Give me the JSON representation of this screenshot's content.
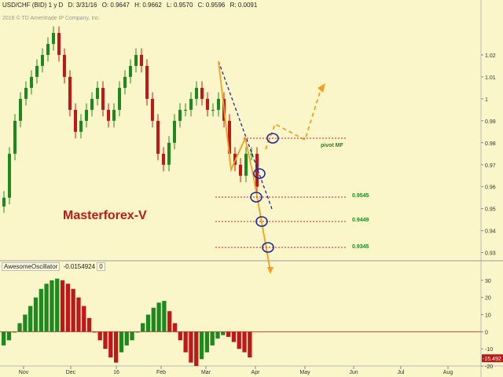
{
  "header": {
    "symbol": "USD/CHF (BID) 1 y D",
    "date": "D: 3/31/16",
    "open": "O: 0.9647",
    "high": "H: 0.9662",
    "low": "L: 0.9570",
    "close": "C: 0.9596",
    "range": "R: 0.0091",
    "copyright": "2016 © TD Ameritrade IP Company, Inc."
  },
  "brand": "Masterforex-V",
  "pivot_label": "pivot MF",
  "levels": [
    "0.9545",
    "0.9449",
    "0.9345"
  ],
  "oscillator": {
    "name": "AwesomeOscillator",
    "value": "-0.0154924",
    "extra": "0",
    "current_badge": "-15.492"
  },
  "colors": {
    "background": "#fbf6c9",
    "up_bar": "#1e8a1e",
    "down_bar": "#c01818",
    "projection": "#f4a020",
    "trendline": "#1a2a9a",
    "level_line": "#d02020"
  },
  "chart_data": [
    {
      "type": "candlestick",
      "title": "USD/CHF (BID) 1 y D",
      "x_tick_labels": [
        "Nov",
        "Dec",
        "16",
        "Feb",
        "Mar",
        "Apr",
        "May",
        "Jun",
        "Jul",
        "Aug"
      ],
      "y_tick_labels": [
        "1.02",
        "1.01",
        "1",
        "0.99",
        "0.98",
        "0.97",
        "0.96",
        "0.95",
        "0.94",
        "0.93"
      ],
      "ylim": [
        0.927,
        1.04
      ],
      "approx_closes": [
        0.955,
        0.975,
        0.99,
        1.0,
        1.005,
        1.01,
        1.015,
        1.02,
        1.025,
        1.03,
        1.02,
        1.01,
        0.995,
        0.985,
        0.99,
        0.995,
        1.0,
        1.005,
        0.995,
        0.99,
        0.995,
        1.005,
        1.01,
        1.015,
        1.02,
        1.015,
        1.0,
        0.99,
        0.975,
        0.97,
        0.98,
        0.99,
        0.995,
        0.995,
        1.0,
        1.005,
        1.0,
        0.995,
        0.995,
        1.0,
        0.99,
        0.975,
        0.97,
        0.965,
        0.975,
        0.975,
        0.96
      ]
    },
    {
      "type": "bar",
      "title": "AwesomeOscillator",
      "y_tick_labels": [
        "30",
        "20",
        "10",
        "0",
        "-10",
        "-20"
      ],
      "ylim": [
        -20,
        35
      ],
      "approx_values": [
        -8,
        -5,
        0,
        5,
        10,
        15,
        20,
        25,
        28,
        30,
        31,
        30,
        28,
        25,
        20,
        15,
        8,
        0,
        -5,
        -10,
        -15,
        -18,
        -12,
        -8,
        -5,
        0,
        5,
        10,
        14,
        17,
        18,
        12,
        5,
        -5,
        -12,
        -18,
        -20,
        -16,
        -12,
        -8,
        -4,
        -2,
        -3,
        -6,
        -10,
        -12,
        -15
      ]
    }
  ]
}
